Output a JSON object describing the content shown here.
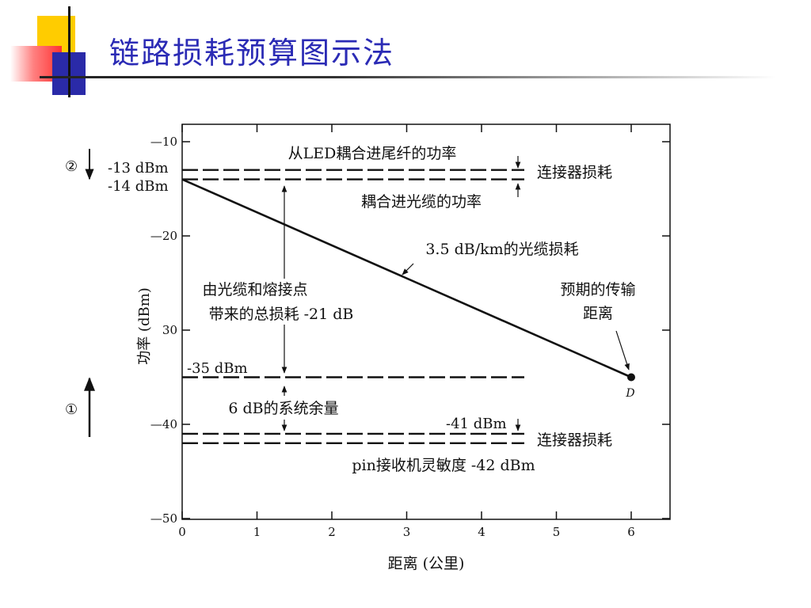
{
  "title": "链路损耗预算图示法",
  "colors": {
    "title": "#2b2bb5",
    "deco_yellow": "#ffcc00",
    "deco_red": "#ff3333",
    "deco_blue": "#2a2aa8"
  },
  "chart_data": {
    "type": "line",
    "xlabel": "距离 (公里)",
    "ylabel": "功率 (dBm)",
    "xlim": [
      0,
      6.5
    ],
    "ylim": [
      -50,
      -8
    ],
    "x_ticks": [
      "0",
      "1",
      "2",
      "3",
      "4",
      "5",
      "6"
    ],
    "y_ticks": [
      "—10",
      "—20",
      "30",
      "—40",
      "—50"
    ],
    "series": [
      {
        "values": [
          [
            0,
            -14
          ],
          [
            6,
            -35
          ]
        ]
      }
    ],
    "levels": [
      {
        "y": -13,
        "style": "dashed"
      },
      {
        "y": -14,
        "style": "dashed"
      },
      {
        "y": -35,
        "style": "dashed"
      },
      {
        "y": -41,
        "style": "dashed"
      },
      {
        "y": -42,
        "style": "dashed"
      }
    ],
    "end_point": {
      "x": 6,
      "y": -35,
      "label": "D"
    },
    "grid": false
  },
  "labels": {
    "level_13": "-13 dBm",
    "level_14": "-14 dBm",
    "level_35": "-35 dBm",
    "level_41": "-41 dBm",
    "led_power": "从LED耦合进尾纤的功率",
    "connector_loss_top": "连接器损耗",
    "cable_power": "耦合进光缆的功率",
    "cable_loss": "3.5 dB/km的光缆损耗",
    "total_loss_line1": "由光缆和熔接点",
    "total_loss_line2": "带来的总损耗 -21 dB",
    "expected_line1": "预期的传输",
    "expected_line2": "距离",
    "margin": "6 dB的系统余量",
    "connector_loss_bottom": "连接器损耗",
    "sensitivity": "pin接收机灵敏度 -42 dBm",
    "marker_2": "②",
    "marker_1": "①"
  }
}
